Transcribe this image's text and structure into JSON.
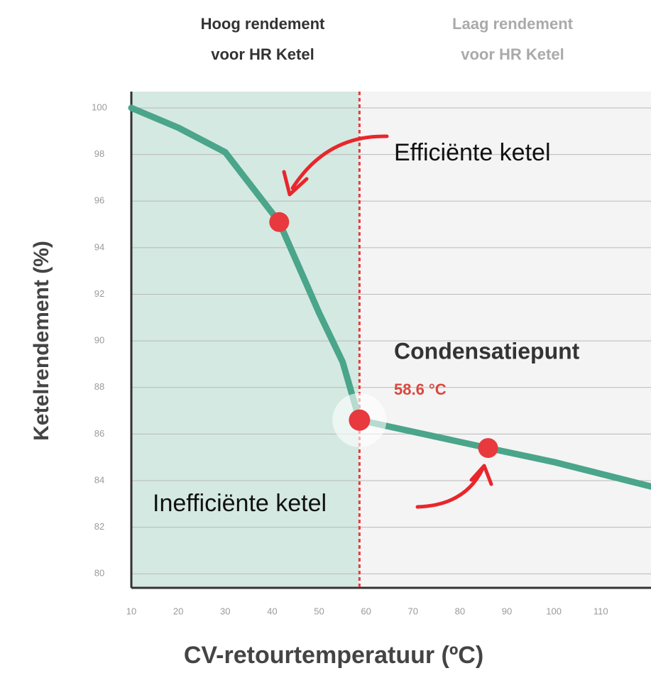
{
  "chart_data": {
    "type": "line",
    "header_left": [
      "Hoog rendement",
      "voor HR Ketel"
    ],
    "header_right": [
      "Laag rendement",
      "voor HR Ketel"
    ],
    "xlabel": "CV-retourtemperatuur (ºC)",
    "ylabel": "Ketelrendement (%)",
    "xlim": [
      10,
      120.7
    ],
    "ylim": [
      79.4,
      100.7
    ],
    "xticks": [
      10,
      20,
      30,
      40,
      50,
      60,
      70,
      80,
      90,
      100,
      110
    ],
    "yticks": [
      80,
      82,
      84,
      86,
      88,
      90,
      92,
      94,
      96,
      98,
      100
    ],
    "grid": true,
    "x": [
      10,
      20,
      30,
      41.5,
      50,
      55,
      58.6,
      70,
      86,
      100,
      120.7
    ],
    "series": [
      {
        "color": "#4aa58a",
        "values": [
          100,
          99.15,
          98.1,
          95.1,
          91.2,
          89.1,
          86.6,
          86.1,
          85.4,
          84.8,
          83.75
        ]
      }
    ],
    "condensation": {
      "label": "Condensatiepunt",
      "x": 58.6,
      "y": 86.6,
      "value_label": "58.6 °C",
      "color": "#e8393e"
    },
    "points": [
      {
        "label": "Efficiënte ketel",
        "x": 41.5,
        "y": 95.1
      },
      {
        "label": "Inefficiënte ketel",
        "x": 86,
        "y": 85.4
      }
    ],
    "point_color": "#e8393e",
    "region_colors": [
      "#d4e9e1",
      "#f4f4f4"
    ]
  }
}
